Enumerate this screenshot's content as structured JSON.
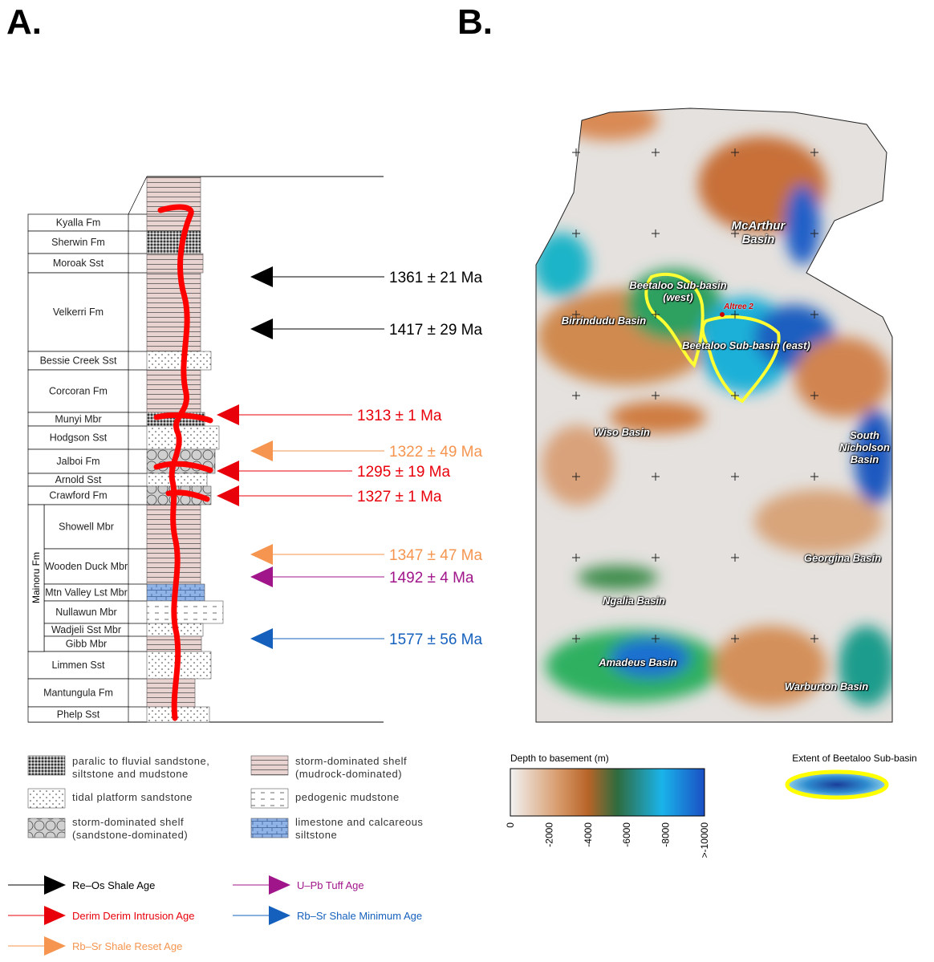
{
  "panel_a": {
    "label": "A.",
    "formations": [
      "Kyalla Fm",
      "Sherwin Fm",
      "Moroak Sst",
      "Velkerri Fm",
      "Bessie Creek Sst",
      "Corcoran Fm",
      "Munyi Mbr",
      "Hodgson Sst",
      "Jalboi Fm",
      "Arnold Sst",
      "Crawford Fm",
      "Showell Mbr",
      "Wooden Duck Mbr",
      "Mtn Valley Lst Mbr",
      "Nullawun Mbr",
      "Wadjeli Sst Mbr",
      "Gibb Mbr",
      "Limmen Sst",
      "Mantungula Fm",
      "Phelp Sst"
    ],
    "group": "Mainoru Fm",
    "ages": [
      {
        "label": "1361 ± 21 Ma",
        "color": "#000000"
      },
      {
        "label": "1417 ± 29 Ma",
        "color": "#000000"
      },
      {
        "label": "1313 ± 1 Ma",
        "color": "#e8000b"
      },
      {
        "label": "1322 ± 49 Ma",
        "color": "#f5954f"
      },
      {
        "label": "1295 ± 19 Ma",
        "color": "#e8000b"
      },
      {
        "label": "1327 ± 1 Ma",
        "color": "#e8000b"
      },
      {
        "label": "1347 ± 47 Ma",
        "color": "#f5954f"
      },
      {
        "label": "1492 ± 4 Ma",
        "color": "#a0168a"
      },
      {
        "label": "1577 ± 56 Ma",
        "color": "#1560bd"
      }
    ]
  },
  "panel_b": {
    "label": "B.",
    "map_labels": [
      "McArthur Basin",
      "Beetaloo Sub-basin (west)",
      "Altree 2",
      "Beetaloo Sub-basin (east)",
      "Birrindudu Basin",
      "Wiso Basin",
      "South Nicholson Basin",
      "Georgina Basin",
      "Ngalia Basin",
      "Amadeus Basin",
      "Warburton Basin"
    ],
    "colorbar": {
      "title": "Depth to basement (m)",
      "ticks": [
        "0",
        "-2000",
        "-4000",
        "-6000",
        "-8000",
        ">-10000"
      ]
    },
    "extent_label": "Extent of Beetaloo Sub-basin"
  },
  "lithology_legend": [
    "paralic to fluvial sandstone, siltstone and mudstone",
    "storm-dominated shelf (mudrock-dominated)",
    "tidal platform sandstone",
    "pedogenic mudstone",
    "storm-dominated shelf (sandstone-dominated)",
    "limestone and calcareous siltstone"
  ],
  "age_legend": [
    {
      "label": "Re–Os Shale Age",
      "color": "#000000"
    },
    {
      "label": "U–Pb Tuff Age",
      "color": "#a0168a"
    },
    {
      "label": "Derim Derim Intrusion Age",
      "color": "#e8000b"
    },
    {
      "label": "Rb–Sr Shale Minimum Age",
      "color": "#1560bd"
    },
    {
      "label": "Rb–Sr Shale Reset Age",
      "color": "#f5954f"
    }
  ]
}
